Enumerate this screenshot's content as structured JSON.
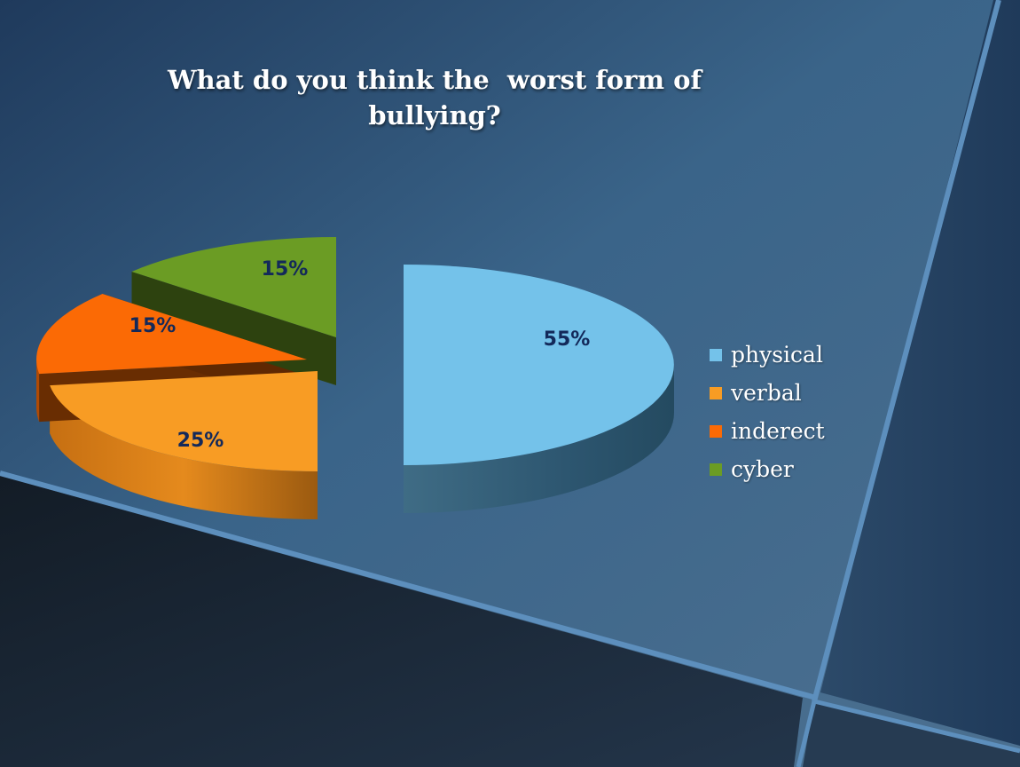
{
  "slide": {
    "title_lines": [
      "What do you think the  worst form of",
      "bullying?"
    ]
  },
  "colors": {
    "physical": "#74c2ea",
    "verbal": "#f89c24",
    "inderect": "#fb6a05",
    "cyber": "#6b9c24",
    "data_label": "#13295a"
  },
  "chart_data": {
    "type": "pie",
    "title": "What do you think the  worst form of bullying?",
    "categories": [
      "physical",
      "verbal",
      "inderect",
      "cyber"
    ],
    "values": [
      55,
      25,
      15,
      15
    ],
    "data_labels": [
      "55%",
      "25%",
      "15%",
      "15%"
    ],
    "legend": {
      "position": "right",
      "entries": [
        "physical",
        "verbal",
        "inderect",
        "cyber"
      ]
    },
    "style": "3d-exploded"
  }
}
